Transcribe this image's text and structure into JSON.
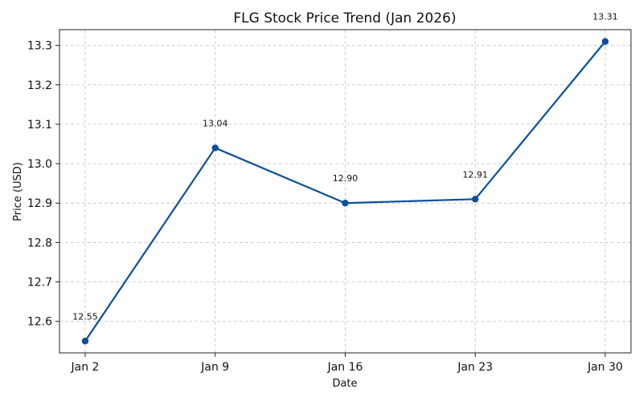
{
  "chart_data": {
    "type": "line",
    "title": "FLG Stock Price Trend (Jan 2026)",
    "xlabel": "Date",
    "ylabel": "Price (USD)",
    "categories": [
      "Jan 2",
      "Jan 9",
      "Jan 16",
      "Jan 23",
      "Jan 30"
    ],
    "series": [
      {
        "values": [
          12.55,
          13.04,
          12.9,
          12.91,
          13.31
        ],
        "data_labels": [
          "12.55",
          "13.04",
          "12.90",
          "12.91",
          "13.31"
        ],
        "color": "#0b4f9c",
        "marker": "circle"
      }
    ],
    "ylim": [
      12.52,
      13.34
    ],
    "yticks": [
      12.6,
      12.7,
      12.8,
      12.9,
      13.0,
      13.1,
      13.2,
      13.3
    ],
    "ytick_labels": [
      "12.6",
      "12.7",
      "12.8",
      "12.9",
      "13.0",
      "13.1",
      "13.2",
      "13.3"
    ],
    "grid": true,
    "legend": false
  }
}
